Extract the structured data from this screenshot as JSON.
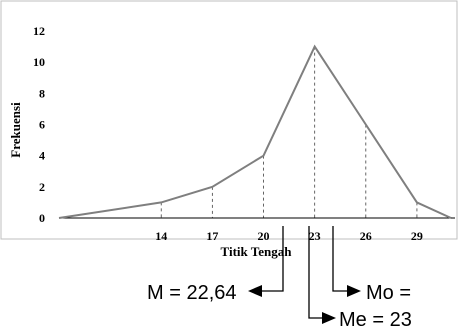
{
  "chart_data": {
    "type": "line",
    "title": "",
    "xlabel": "Titik Tengah",
    "ylabel": "Frekuensi",
    "x": [
      8,
      14,
      17,
      20,
      23,
      26,
      29,
      31
    ],
    "values": [
      0,
      1,
      2,
      4,
      11,
      6,
      1,
      0
    ],
    "x_tick_labels": [
      "14",
      "17",
      "20",
      "23",
      "26",
      "29"
    ],
    "y_ticks": [
      0,
      2,
      4,
      6,
      8,
      10,
      12
    ],
    "ylim": [
      0,
      12
    ],
    "grid": false,
    "line_color": "#7f7f7f",
    "annotations": [
      {
        "label": "M = 22,64",
        "value": 22.64
      },
      {
        "label": "Mo =",
        "value": null
      },
      {
        "label": "Me = 23",
        "value": 23
      }
    ]
  }
}
